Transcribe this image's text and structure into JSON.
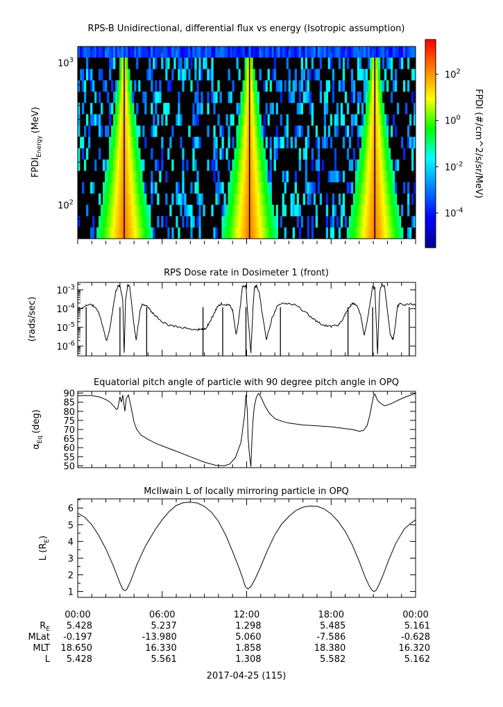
{
  "colors": {
    "colormap": [
      "#00008f",
      "#0000ff",
      "#0080ff",
      "#00ffff",
      "#00ff00",
      "#ffff00",
      "#ff8000",
      "#ff0000"
    ],
    "background": "#ffffff",
    "spectrogram_floor": "#000000"
  },
  "chart_data": [
    {
      "type": "heatmap",
      "title": "RPS-B  Unidirectional, differential flux vs energy (Isotropic assumption)",
      "ylabel_main": "FPDI",
      "ylabel_sub": "Energy",
      "ylabel_unit": "(MeV)",
      "yscale": "log",
      "ylim": [
        58,
        1300
      ],
      "yticks": [
        {
          "value": 100,
          "base": "10",
          "exp": "2"
        },
        {
          "value": 1000,
          "base": "10",
          "exp": "3"
        }
      ],
      "xlim_hours": [
        0,
        24
      ],
      "peaks_hours": [
        3.3,
        12.2,
        21.1
      ],
      "colorbar": {
        "label": "FPDI (#/cm^2/s/sr/MeV)",
        "scale": "log",
        "range_exp": [
          -5.5,
          3.5
        ],
        "ticks": [
          {
            "value": 0.0001,
            "base": "10",
            "exp": "-4"
          },
          {
            "value": 0.01,
            "base": "10",
            "exp": "-2"
          },
          {
            "value": 1,
            "base": "10",
            "exp": "0"
          },
          {
            "value": 100,
            "base": "10",
            "exp": "2"
          }
        ]
      }
    },
    {
      "type": "line",
      "title": "RPS  Dose rate in Dosimeter 1 (front)",
      "ylabel": "(rads/sec)",
      "yscale": "log",
      "ylim": [
        3e-07,
        0.0025
      ],
      "yticks": [
        {
          "value": 1e-06,
          "base": "10",
          "exp": "-6"
        },
        {
          "value": 1e-05,
          "base": "10",
          "exp": "-5"
        },
        {
          "value": 0.0001,
          "base": "10",
          "exp": "-4"
        },
        {
          "value": 0.001,
          "base": "10",
          "exp": "-3"
        }
      ],
      "series": [
        {
          "x_hours": [
            0,
            0.6,
            0.9,
            1.2,
            1.5,
            1.8,
            2.05,
            2.3,
            2.5,
            2.7,
            2.9,
            3.0,
            3.2,
            3.3,
            3.4,
            3.55,
            3.7,
            3.85,
            4.0,
            4.15,
            4.3,
            4.45,
            4.6,
            4.8,
            5.0,
            5.3,
            5.6,
            6.0,
            6.5,
            7.0,
            7.5,
            8.0,
            8.5,
            8.8,
            8.9,
            9.1,
            9.3,
            9.6,
            9.9,
            10.2,
            10.5,
            10.8,
            11.0,
            11.25,
            11.45,
            11.7,
            11.95,
            12.05,
            12.3,
            12.45,
            12.55,
            12.7,
            12.9,
            13.1,
            13.4,
            13.8,
            14.2,
            14.6,
            15.0,
            15.5,
            16.0,
            16.5,
            17.0,
            17.5,
            18.0,
            18.5,
            18.8,
            19.0,
            19.3,
            19.5,
            19.7,
            19.9,
            20.1,
            20.35,
            20.6,
            20.8,
            20.95,
            21.1,
            21.3,
            21.45,
            21.6,
            21.8,
            22.0,
            22.2,
            22.4,
            22.55,
            22.7,
            22.9,
            23.2,
            23.6,
            24.0
          ],
          "y": [
            0.0001,
            0.00014,
            0.00016,
            0.00013,
            6e-05,
            1e-05,
            1.8e-06,
            1e-05,
            0.0001,
            0.0008,
            0.0018,
            0.0015,
            0.0003,
            4e-07,
            0.0003,
            0.0018,
            0.0014,
            0.00015,
            1.2e-05,
            2e-06,
            1.3e-05,
            0.0001,
            0.00017,
            0.00014,
            0.00012,
            6e-05,
            3.5e-05,
            2e-05,
            1.3e-05,
            1.1e-05,
            9.5e-06,
            8.5e-06,
            7.5e-06,
            8.5e-06,
            8e-06,
            9e-06,
            1.5e-05,
            4e-05,
            0.00012,
            0.00018,
            0.00016,
            0.00015,
            8e-05,
            4e-06,
            3e-05,
            0.0015,
            0.0016,
            0.0001,
            4e-07,
            0.0001,
            0.0013,
            0.0016,
            0.0007,
            6e-05,
            2.2e-06,
            3e-05,
            0.00015,
            0.0002,
            0.00018,
            0.00015,
            8e-05,
            4e-05,
            2e-05,
            1.3e-05,
            1.1e-05,
            1.3e-05,
            2.5e-05,
            5e-05,
            0.00012,
            0.00019,
            0.00016,
            0.00012,
            4e-05,
            4e-06,
            3e-05,
            0.0003,
            0.0014,
            0.0013,
            4e-07,
            0.0008,
            0.0019,
            0.0016,
            8e-05,
            4e-06,
            2.2e-06,
            1e-05,
            0.00012,
            0.00019,
            0.00016,
            0.00018,
            0.00015
          ]
        }
      ],
      "dropouts_hours": [
        0.6,
        3.0,
        4.9,
        8.9,
        10.3,
        11.95,
        14.4,
        19.2,
        20.95,
        23.55
      ]
    },
    {
      "type": "line",
      "title": "Equatorial pitch angle of particle with 90 degree pitch angle in OPQ",
      "ylabel_main": "α",
      "ylabel_sub": "Eq",
      "ylabel_unit": "(deg)",
      "ylim": [
        49,
        91
      ],
      "yticks": [
        50,
        55,
        60,
        65,
        70,
        75,
        80,
        85,
        90
      ],
      "series": [
        {
          "x_hours": [
            0,
            0.5,
            1.0,
            1.5,
            2.0,
            2.3,
            2.6,
            2.75,
            2.85,
            3.0,
            3.1,
            3.2,
            3.35,
            3.45,
            3.6,
            3.8,
            4.0,
            4.2,
            4.5,
            5.0,
            5.5,
            6.0,
            7.0,
            8.0,
            9.0,
            9.8,
            10.4,
            10.8,
            11.2,
            11.6,
            11.85,
            11.95,
            12.05,
            12.1,
            12.2,
            12.3,
            12.35,
            12.45,
            12.55,
            12.7,
            12.85,
            13.0,
            13.3,
            13.6,
            14.0,
            14.5,
            15.0,
            15.5,
            16.0,
            17.0,
            18.0,
            19.0,
            19.5,
            20.0,
            20.3,
            20.55,
            20.75,
            20.9,
            21.0,
            21.1,
            21.3,
            21.5,
            21.8,
            22.2,
            22.6,
            23.0,
            23.5,
            24.0
          ],
          "y": [
            88.5,
            88.7,
            88.6,
            88.0,
            86.5,
            85.0,
            82.5,
            81.0,
            81.5,
            88.0,
            85.0,
            89.0,
            80.0,
            87.0,
            89.0,
            82.0,
            74.0,
            70.0,
            67.0,
            64.5,
            62.5,
            61.0,
            58.0,
            55.0,
            52.0,
            50.3,
            50.0,
            51.0,
            54.5,
            63.0,
            78.0,
            89.0,
            80.0,
            66.0,
            56.0,
            49.5,
            60.0,
            75.0,
            83.0,
            88.0,
            89.8,
            88.0,
            83.0,
            79.0,
            76.0,
            74.5,
            73.5,
            73.0,
            72.5,
            72.0,
            71.5,
            70.5,
            70.0,
            69.0,
            69.5,
            72.0,
            78.0,
            84.0,
            88.0,
            89.5,
            86.0,
            84.5,
            83.0,
            84.0,
            85.5,
            87.0,
            88.5,
            89.9
          ]
        }
      ]
    },
    {
      "type": "line",
      "title": "McIlwain L of locally mirroring particle in OPQ",
      "ylabel_main": "L (R",
      "ylabel_sub": "E",
      "ylabel_unit": ")",
      "ylim": [
        0.65,
        6.55
      ],
      "yticks": [
        1,
        2,
        3,
        4,
        5,
        6
      ],
      "series": [
        {
          "x_hours": [
            0,
            0.5,
            1.0,
            1.5,
            2.0,
            2.5,
            2.8,
            3.0,
            3.2,
            3.35,
            3.5,
            3.8,
            4.2,
            4.8,
            5.5,
            6.0,
            6.5,
            7.0,
            7.5,
            8.0,
            8.5,
            9.0,
            9.5,
            10.0,
            10.5,
            11.0,
            11.4,
            11.7,
            11.9,
            12.1,
            12.3,
            12.6,
            13.0,
            13.5,
            14.0,
            14.5,
            15.0,
            15.5,
            16.0,
            16.5,
            17.0,
            17.5,
            18.0,
            18.5,
            19.0,
            19.5,
            20.0,
            20.4,
            20.7,
            20.9,
            21.05,
            21.2,
            21.4,
            21.7,
            22.1,
            22.6,
            23.2,
            23.6,
            24.0
          ],
          "y": [
            5.7,
            5.45,
            5.0,
            4.35,
            3.55,
            2.6,
            1.95,
            1.5,
            1.15,
            1.05,
            1.15,
            1.7,
            2.6,
            3.7,
            4.7,
            5.3,
            5.8,
            6.15,
            6.32,
            6.35,
            6.3,
            6.1,
            5.75,
            5.2,
            4.4,
            3.4,
            2.55,
            1.85,
            1.3,
            1.15,
            1.3,
            1.75,
            2.5,
            3.5,
            4.4,
            5.05,
            5.5,
            5.85,
            6.05,
            6.12,
            6.1,
            5.95,
            5.65,
            5.2,
            4.6,
            3.8,
            2.8,
            1.9,
            1.35,
            1.08,
            1.0,
            1.08,
            1.4,
            2.0,
            2.9,
            3.9,
            4.75,
            5.05,
            5.3
          ]
        }
      ]
    }
  ],
  "x_axis": {
    "tick_labels": [
      "00:00",
      "06:00",
      "12:00",
      "18:00",
      "00:00"
    ],
    "minor_per_major": 6,
    "rows": [
      {
        "label_main": "R",
        "label_sub": "E",
        "values": [
          "5.428",
          "5.237",
          "1.298",
          "5.485",
          "5.161"
        ]
      },
      {
        "label_main": "MLat",
        "label_sub": "",
        "values": [
          "-0.197",
          "-13.980",
          "5.060",
          "-7.586",
          "-0.628"
        ]
      },
      {
        "label_main": "MLT",
        "label_sub": "",
        "values": [
          "18.650",
          "16.330",
          "1.858",
          "18.380",
          "16.320"
        ]
      },
      {
        "label_main": "L",
        "label_sub": "",
        "values": [
          "5.428",
          "5.561",
          "1.308",
          "5.582",
          "5.162"
        ]
      }
    ],
    "date_label": "2017-04-25 (115)"
  }
}
